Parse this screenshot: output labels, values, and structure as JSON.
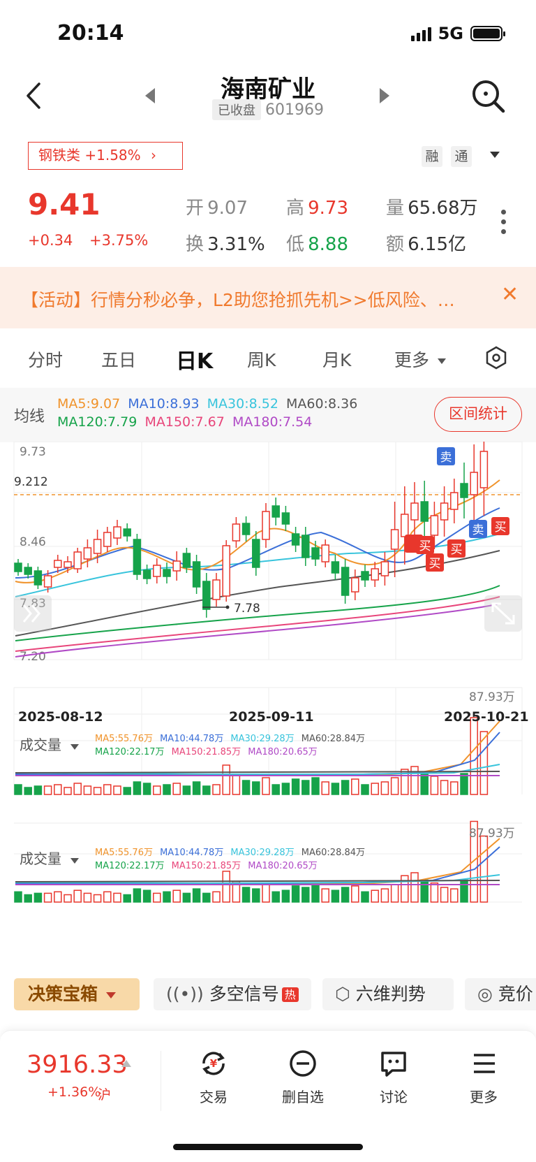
{
  "status_bar": {
    "time": "20:14",
    "network": "5G"
  },
  "header": {
    "name": "海南矿业",
    "market_status": "已收盘",
    "code": "601969"
  },
  "sector": {
    "label": "钢铁类 +1.58%",
    "chevron": "›"
  },
  "tags": {
    "rong": "融",
    "tong": "通"
  },
  "quote": {
    "price": "9.41",
    "change": "+0.34",
    "change_pct": "+3.75%",
    "open_label": "开",
    "open": "9.07",
    "high_label": "高",
    "high": "9.73",
    "volume_label": "量",
    "volume": "65.68万",
    "turnover_label": "换",
    "turnover": "3.31%",
    "low_label": "低",
    "low": "8.88",
    "amount_label": "额",
    "amount": "6.15亿"
  },
  "banner": {
    "text": "【活动】行情分秒必争，L2助您抢抓先机>>低风险、…",
    "close": "✕"
  },
  "tabs": [
    "分时",
    "五日",
    "日K",
    "周K",
    "月K",
    "更多"
  ],
  "active_tab": "日K",
  "ma": {
    "label": "均线",
    "ma5": "MA5:9.07",
    "ma10": "MA10:8.93",
    "ma30": "MA30:8.52",
    "ma60": "MA60:8.36",
    "ma120": "MA120:7.79",
    "ma150": "MA150:7.67",
    "ma180": "MA180:7.54",
    "range_button": "区间统计"
  },
  "kline": {
    "y_labels": [
      "9.73",
      "9.212",
      "8.46",
      "7.83",
      "7.20"
    ],
    "low_marker": "7.78",
    "dates": [
      "2025-08-12",
      "2025-09-11",
      "2025-10-21"
    ],
    "signals": {
      "buy": "买",
      "sell": "卖"
    }
  },
  "volume1": {
    "title": "成交量",
    "ma5": "MA5:55.76万",
    "ma10": "MA10:44.78万",
    "ma30": "MA30:29.28万",
    "ma60": "MA60:28.84万",
    "ma120": "MA120:22.17万",
    "ma150": "MA150:21.85万",
    "ma180": "MA180:20.65万",
    "max": "87.93万"
  },
  "volume2": {
    "title": "成交量",
    "ma5": "MA5:55.76万",
    "ma10": "MA10:44.78万",
    "ma30": "MA30:29.28万",
    "ma60": "MA60:28.84万",
    "ma120": "MA120:22.17万",
    "ma150": "MA150:21.85万",
    "ma180": "MA180:20.65万",
    "max": "87.93万"
  },
  "toolbox": {
    "main": "决策宝箱",
    "signal": "多空信号",
    "hot": "热",
    "six": "六维判势",
    "auction": "竞价"
  },
  "index": {
    "value": "3916.33",
    "change": "+1.36%",
    "market": "沪"
  },
  "nav": {
    "trade": "交易",
    "remove": "删自选",
    "discuss": "讨论",
    "more": "更多"
  },
  "colors": {
    "up": "#e8372c",
    "down": "#16a34a",
    "accent": "#f07a2e"
  }
}
